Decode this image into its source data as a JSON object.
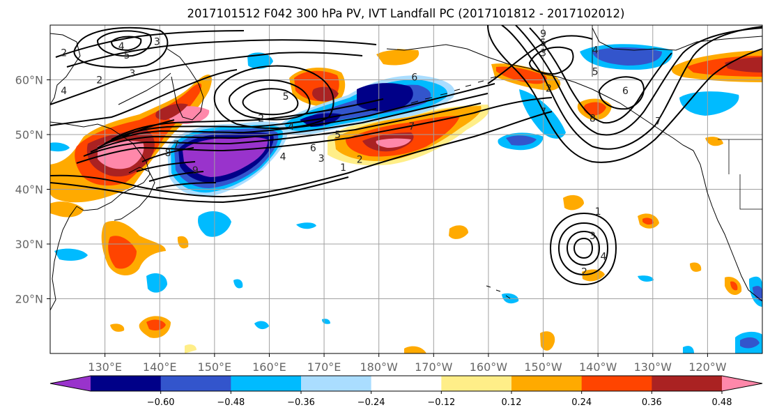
{
  "title": "2017101512 F042 300 hPa PV, IVT Landfall PC (2017101812 - 2017102012)",
  "map": {
    "projection": "equirectangular",
    "lon_range_east": [
      120,
      250
    ],
    "lat_range": [
      10,
      70
    ],
    "lat_ticks": [
      {
        "lat": 60,
        "label": "60°N"
      },
      {
        "lat": 50,
        "label": "50°N"
      },
      {
        "lat": 40,
        "label": "40°N"
      },
      {
        "lat": 30,
        "label": "30°N"
      },
      {
        "lat": 20,
        "label": "20°N"
      }
    ],
    "lon_ticks": [
      {
        "lon": 130,
        "label": "130°E"
      },
      {
        "lon": 140,
        "label": "140°E"
      },
      {
        "lon": 150,
        "label": "150°E"
      },
      {
        "lon": 160,
        "label": "160°E"
      },
      {
        "lon": 170,
        "label": "170°E"
      },
      {
        "lon": 180,
        "label": "180°W"
      },
      {
        "lon": 190,
        "label": "170°W"
      },
      {
        "lon": 200,
        "label": "160°W"
      },
      {
        "lon": 210,
        "label": "150°W"
      },
      {
        "lon": 220,
        "label": "140°W"
      },
      {
        "lon": 230,
        "label": "130°W"
      },
      {
        "lon": 240,
        "label": "120°W"
      }
    ],
    "grid": true
  },
  "colorbar": {
    "colors": [
      "#9933cc",
      "#000088",
      "#3355cc",
      "#00bbff",
      "#aaddff",
      "#ffffff",
      "#ffee88",
      "#ffaa00",
      "#ff4400",
      "#aa2222",
      "#ff88aa"
    ],
    "tick_labels": [
      "−0.60",
      "−0.48",
      "−0.36",
      "−0.24",
      "−0.12",
      "0.12",
      "0.24",
      "0.36",
      "0.48",
      "0.60"
    ],
    "extend": "both"
  },
  "contours": {
    "labels": [
      {
        "lon": 133,
        "lat": 66.2,
        "text": "4"
      },
      {
        "lon": 139.5,
        "lat": 67,
        "text": "3"
      },
      {
        "lon": 134,
        "lat": 64.5,
        "text": "5"
      },
      {
        "lon": 122.5,
        "lat": 65,
        "text": "2"
      },
      {
        "lon": 135,
        "lat": 61.2,
        "text": "3"
      },
      {
        "lon": 129,
        "lat": 60,
        "text": "2"
      },
      {
        "lon": 122.5,
        "lat": 58,
        "text": "4"
      },
      {
        "lon": 158.5,
        "lat": 53,
        "text": "2"
      },
      {
        "lon": 164,
        "lat": 51.5,
        "text": "4"
      },
      {
        "lon": 163,
        "lat": 57,
        "text": "5"
      },
      {
        "lon": 172.5,
        "lat": 50,
        "text": "5"
      },
      {
        "lon": 168,
        "lat": 47.6,
        "text": "6"
      },
      {
        "lon": 169.5,
        "lat": 45.7,
        "text": "3"
      },
      {
        "lon": 162.5,
        "lat": 46,
        "text": "4"
      },
      {
        "lon": 173.5,
        "lat": 44,
        "text": "1"
      },
      {
        "lon": 176.5,
        "lat": 45.5,
        "text": "2"
      },
      {
        "lon": 186.5,
        "lat": 60.5,
        "text": "6"
      },
      {
        "lon": 186,
        "lat": 51.5,
        "text": "7"
      },
      {
        "lon": 210,
        "lat": 68.5,
        "text": "9"
      },
      {
        "lon": 210,
        "lat": 66.8,
        "text": "5"
      },
      {
        "lon": 210,
        "lat": 65,
        "text": "3"
      },
      {
        "lon": 219.5,
        "lat": 65.5,
        "text": "4"
      },
      {
        "lon": 219.5,
        "lat": 61.5,
        "text": "5"
      },
      {
        "lon": 225,
        "lat": 58,
        "text": "6"
      },
      {
        "lon": 211,
        "lat": 58.5,
        "text": "2"
      },
      {
        "lon": 210,
        "lat": 54.2,
        "text": "7"
      },
      {
        "lon": 219,
        "lat": 53,
        "text": "8"
      },
      {
        "lon": 231,
        "lat": 52.5,
        "text": "7"
      },
      {
        "lon": 220,
        "lat": 36,
        "text": "1"
      },
      {
        "lon": 219,
        "lat": 31.5,
        "text": "3"
      },
      {
        "lon": 221,
        "lat": 27.8,
        "text": "4"
      },
      {
        "lon": 217.5,
        "lat": 25,
        "text": "2"
      },
      {
        "lon": 141.5,
        "lat": 46.7,
        "text": "8"
      },
      {
        "lon": 146.5,
        "lat": 43.5,
        "text": "9"
      },
      {
        "lon": 143,
        "lat": 48.2,
        "text": "7"
      }
    ]
  }
}
